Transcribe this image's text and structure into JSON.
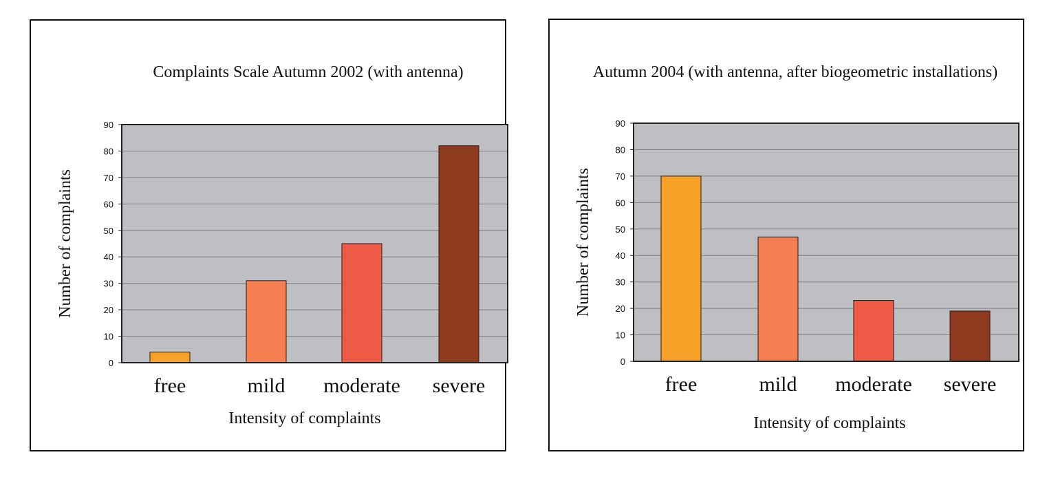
{
  "chart_data": [
    {
      "type": "bar",
      "title": "Complaints Scale Autumn 2002 (with antenna)",
      "xlabel": "Intensity of complaints",
      "ylabel": "Number of complaints",
      "categories": [
        "free",
        "mild",
        "moderate",
        "severe"
      ],
      "values": [
        4,
        31,
        45,
        82
      ],
      "ylim": [
        0,
        90
      ],
      "yticks": [
        0,
        10,
        20,
        30,
        40,
        50,
        60,
        70,
        80,
        90
      ],
      "colors": [
        "#F7A128",
        "#F47E50",
        "#EE5A45",
        "#8E3A1E"
      ],
      "plot_background": "#BEBFC3",
      "grid": true
    },
    {
      "type": "bar",
      "title": "Autumn 2004 (with antenna, after biogeometric installations)",
      "xlabel": "Intensity of complaints",
      "ylabel": "Number of complaints",
      "categories": [
        "free",
        "mild",
        "moderate",
        "severe"
      ],
      "values": [
        70,
        47,
        23,
        19
      ],
      "ylim": [
        0,
        90
      ],
      "yticks": [
        0,
        10,
        20,
        30,
        40,
        50,
        60,
        70,
        80,
        90
      ],
      "colors": [
        "#F7A128",
        "#F47E50",
        "#EE5A45",
        "#8E3A1E"
      ],
      "plot_background": "#BEBFC3",
      "grid": true
    }
  ]
}
